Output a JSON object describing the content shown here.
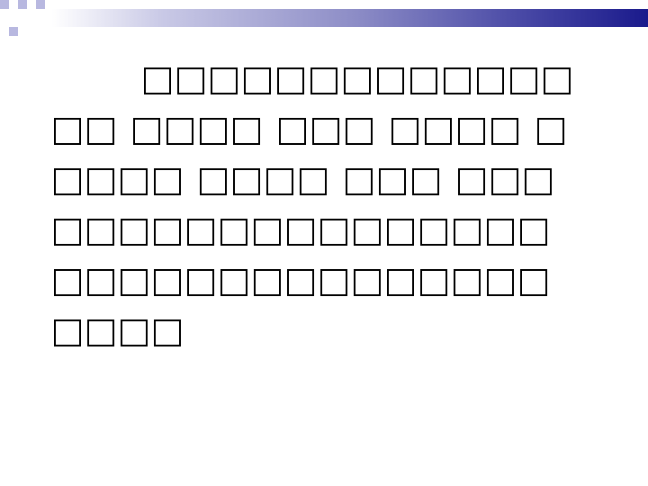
{
  "slide": {
    "accent_colors": {
      "header_gradient_start": "#ffffff",
      "header_gradient_end": "#1a1a8c",
      "corner_dark": "#1a1a8c",
      "corner_light": "#b8b8e0"
    },
    "body_text_lines": [
      "              ",
      "          ",
      "             ",
      "                  ",
      "                  ",
      "    "
    ]
  }
}
